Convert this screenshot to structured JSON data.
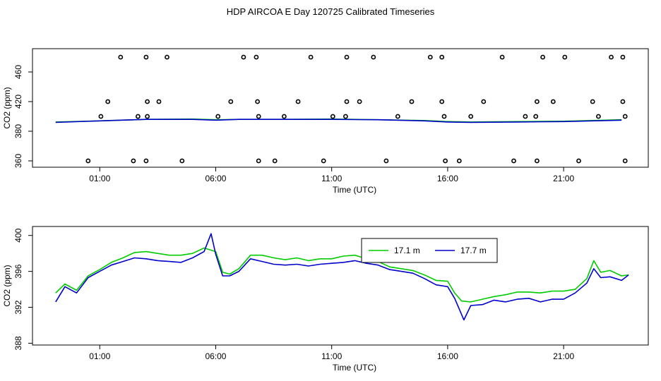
{
  "title": "HDP AIRCOA E  Day 120725  Calibrated Timeseries",
  "colors": {
    "green": "#00cc00",
    "blue": "#0000cc",
    "axis": "#000000"
  },
  "chart_data": [
    {
      "type": "scatter",
      "name": "calibration",
      "xlabel": "Time (UTC)",
      "ylabel": "CO2 (ppm)",
      "x_tick_labels": [
        "01:00",
        "06:00",
        "11:00",
        "16:00",
        "21:00"
      ],
      "x_tick_hours": [
        1,
        6,
        11,
        16,
        21
      ],
      "y_ticks": [
        360,
        380,
        420,
        460
      ],
      "xlim": [
        -1.9,
        24.65
      ],
      "ylim": [
        352,
        486
      ],
      "grid": false,
      "points": [
        [
          0.5,
          360
        ],
        [
          1.05,
          400
        ],
        [
          1.35,
          420
        ],
        [
          1.9,
          480
        ],
        [
          2.45,
          360
        ],
        [
          2.65,
          400
        ],
        [
          3.0,
          480
        ],
        [
          3.05,
          420
        ],
        [
          3.05,
          400
        ],
        [
          3.0,
          360
        ],
        [
          3.55,
          420
        ],
        [
          3.9,
          480
        ],
        [
          4.55,
          360
        ],
        [
          6.1,
          400
        ],
        [
          6.65,
          420
        ],
        [
          7.2,
          480
        ],
        [
          7.75,
          480
        ],
        [
          7.8,
          420
        ],
        [
          7.85,
          400
        ],
        [
          7.85,
          360
        ],
        [
          8.55,
          360
        ],
        [
          8.95,
          400
        ],
        [
          9.55,
          420
        ],
        [
          10.1,
          480
        ],
        [
          10.65,
          360
        ],
        [
          11.05,
          400
        ],
        [
          11.65,
          480
        ],
        [
          11.65,
          420
        ],
        [
          11.6,
          400
        ],
        [
          12.2,
          420
        ],
        [
          12.8,
          480
        ],
        [
          13.35,
          360
        ],
        [
          13.85,
          400
        ],
        [
          14.45,
          420
        ],
        [
          15.25,
          480
        ],
        [
          15.75,
          480
        ],
        [
          15.75,
          420
        ],
        [
          15.85,
          400
        ],
        [
          15.9,
          360
        ],
        [
          16.5,
          360
        ],
        [
          17.0,
          400
        ],
        [
          17.55,
          420
        ],
        [
          18.35,
          480
        ],
        [
          18.85,
          360
        ],
        [
          19.35,
          400
        ],
        [
          19.8,
          400
        ],
        [
          19.85,
          420
        ],
        [
          19.85,
          360
        ],
        [
          20.1,
          480
        ],
        [
          20.55,
          420
        ],
        [
          21.05,
          480
        ],
        [
          21.65,
          360
        ],
        [
          22.25,
          420
        ],
        [
          22.5,
          400
        ],
        [
          23.05,
          480
        ],
        [
          23.55,
          480
        ],
        [
          23.55,
          420
        ],
        [
          23.65,
          400
        ],
        [
          23.65,
          360
        ]
      ],
      "series": [
        {
          "name": "17.1 m",
          "color": "#00cc00",
          "points": [
            [
              -0.9,
              392.5
            ],
            [
              1.0,
              394.0
            ],
            [
              3.0,
              396.0
            ],
            [
              5.0,
              396.5
            ],
            [
              6.0,
              395.5
            ],
            [
              7.0,
              396.0
            ],
            [
              9.0,
              396.0
            ],
            [
              11.0,
              396.5
            ],
            [
              13.0,
              395.5
            ],
            [
              15.0,
              394.5
            ],
            [
              16.0,
              393.0
            ],
            [
              17.0,
              392.5
            ],
            [
              19.0,
              393.0
            ],
            [
              21.0,
              393.5
            ],
            [
              23.5,
              395.5
            ]
          ]
        },
        {
          "name": "17.7 m",
          "color": "#0000cc",
          "points": [
            [
              -0.9,
              392.0
            ],
            [
              1.0,
              394.0
            ],
            [
              3.0,
              396.0
            ],
            [
              5.0,
              396.0
            ],
            [
              6.0,
              395.0
            ],
            [
              7.0,
              396.0
            ],
            [
              9.0,
              396.0
            ],
            [
              11.0,
              396.0
            ],
            [
              13.0,
              395.5
            ],
            [
              15.0,
              394.0
            ],
            [
              16.0,
              392.5
            ],
            [
              17.0,
              392.0
            ],
            [
              19.0,
              392.5
            ],
            [
              21.0,
              393.0
            ],
            [
              23.5,
              395.0
            ]
          ]
        }
      ]
    },
    {
      "type": "line",
      "name": "timeseries",
      "xlabel": "Time (UTC)",
      "ylabel": "CO2 (ppm)",
      "x_tick_labels": [
        "01:00",
        "06:00",
        "11:00",
        "16:00",
        "21:00"
      ],
      "x_tick_hours": [
        1,
        6,
        11,
        16,
        21
      ],
      "y_ticks": [
        388,
        392,
        396,
        400
      ],
      "xlim": [
        -1.9,
        24.65
      ],
      "ylim": [
        387.8,
        401
      ],
      "grid": false,
      "legend": "top-right",
      "series": [
        {
          "name": "17.1 m",
          "color": "#00cc00",
          "points": [
            [
              -0.9,
              393.6
            ],
            [
              -0.5,
              394.6
            ],
            [
              0.0,
              393.9
            ],
            [
              0.5,
              395.5
            ],
            [
              1.0,
              396.2
            ],
            [
              1.5,
              397.0
            ],
            [
              2.0,
              397.5
            ],
            [
              2.5,
              398.1
            ],
            [
              3.0,
              398.2
            ],
            [
              3.5,
              398.0
            ],
            [
              4.0,
              397.8
            ],
            [
              4.5,
              397.8
            ],
            [
              5.0,
              398.0
            ],
            [
              5.5,
              398.6
            ],
            [
              6.0,
              398.2
            ],
            [
              6.3,
              395.9
            ],
            [
              6.6,
              395.7
            ],
            [
              7.0,
              396.3
            ],
            [
              7.5,
              397.8
            ],
            [
              8.0,
              397.8
            ],
            [
              8.5,
              397.5
            ],
            [
              9.0,
              397.3
            ],
            [
              9.5,
              397.5
            ],
            [
              10.0,
              397.2
            ],
            [
              10.5,
              397.4
            ],
            [
              11.0,
              397.4
            ],
            [
              11.5,
              397.7
            ],
            [
              12.0,
              397.8
            ],
            [
              12.5,
              397.4
            ],
            [
              13.0,
              397.1
            ],
            [
              13.5,
              396.5
            ],
            [
              14.0,
              396.3
            ],
            [
              14.5,
              396.1
            ],
            [
              15.0,
              395.6
            ],
            [
              15.5,
              395.0
            ],
            [
              16.0,
              394.9
            ],
            [
              16.3,
              393.6
            ],
            [
              16.6,
              392.7
            ],
            [
              17.0,
              392.6
            ],
            [
              17.5,
              392.9
            ],
            [
              18.0,
              393.2
            ],
            [
              18.5,
              393.4
            ],
            [
              19.0,
              393.7
            ],
            [
              19.5,
              393.7
            ],
            [
              20.0,
              393.6
            ],
            [
              20.5,
              393.8
            ],
            [
              21.0,
              393.8
            ],
            [
              21.5,
              394.0
            ],
            [
              22.0,
              395.2
            ],
            [
              22.3,
              397.2
            ],
            [
              22.6,
              395.9
            ],
            [
              23.0,
              396.1
            ],
            [
              23.5,
              395.5
            ],
            [
              23.8,
              395.6
            ]
          ]
        },
        {
          "name": "17.7 m",
          "color": "#0000cc",
          "points": [
            [
              -0.9,
              392.6
            ],
            [
              -0.5,
              394.3
            ],
            [
              0.0,
              393.6
            ],
            [
              0.5,
              395.3
            ],
            [
              1.0,
              396.0
            ],
            [
              1.5,
              396.7
            ],
            [
              2.0,
              397.1
            ],
            [
              2.5,
              397.5
            ],
            [
              3.0,
              397.4
            ],
            [
              3.5,
              397.2
            ],
            [
              4.0,
              397.1
            ],
            [
              4.5,
              397.0
            ],
            [
              5.0,
              397.5
            ],
            [
              5.5,
              398.2
            ],
            [
              5.8,
              400.2
            ],
            [
              6.0,
              397.9
            ],
            [
              6.3,
              395.5
            ],
            [
              6.6,
              395.5
            ],
            [
              7.0,
              396.0
            ],
            [
              7.5,
              397.4
            ],
            [
              8.0,
              397.1
            ],
            [
              8.5,
              396.8
            ],
            [
              9.0,
              396.7
            ],
            [
              9.5,
              396.8
            ],
            [
              10.0,
              396.6
            ],
            [
              10.5,
              396.8
            ],
            [
              11.0,
              396.9
            ],
            [
              11.5,
              397.0
            ],
            [
              12.0,
              397.2
            ],
            [
              12.5,
              396.9
            ],
            [
              13.0,
              396.7
            ],
            [
              13.5,
              396.2
            ],
            [
              14.0,
              396.0
            ],
            [
              14.5,
              395.8
            ],
            [
              15.0,
              395.2
            ],
            [
              15.5,
              394.5
            ],
            [
              16.0,
              394.3
            ],
            [
              16.3,
              393.0
            ],
            [
              16.7,
              390.6
            ],
            [
              17.0,
              392.2
            ],
            [
              17.5,
              392.3
            ],
            [
              18.0,
              392.8
            ],
            [
              18.5,
              392.6
            ],
            [
              19.0,
              392.9
            ],
            [
              19.5,
              393.0
            ],
            [
              20.0,
              392.6
            ],
            [
              20.5,
              392.9
            ],
            [
              21.0,
              392.9
            ],
            [
              21.5,
              393.6
            ],
            [
              22.0,
              394.7
            ],
            [
              22.3,
              396.3
            ],
            [
              22.6,
              395.3
            ],
            [
              23.0,
              395.4
            ],
            [
              23.5,
              395.0
            ],
            [
              23.8,
              395.6
            ]
          ]
        }
      ]
    }
  ]
}
